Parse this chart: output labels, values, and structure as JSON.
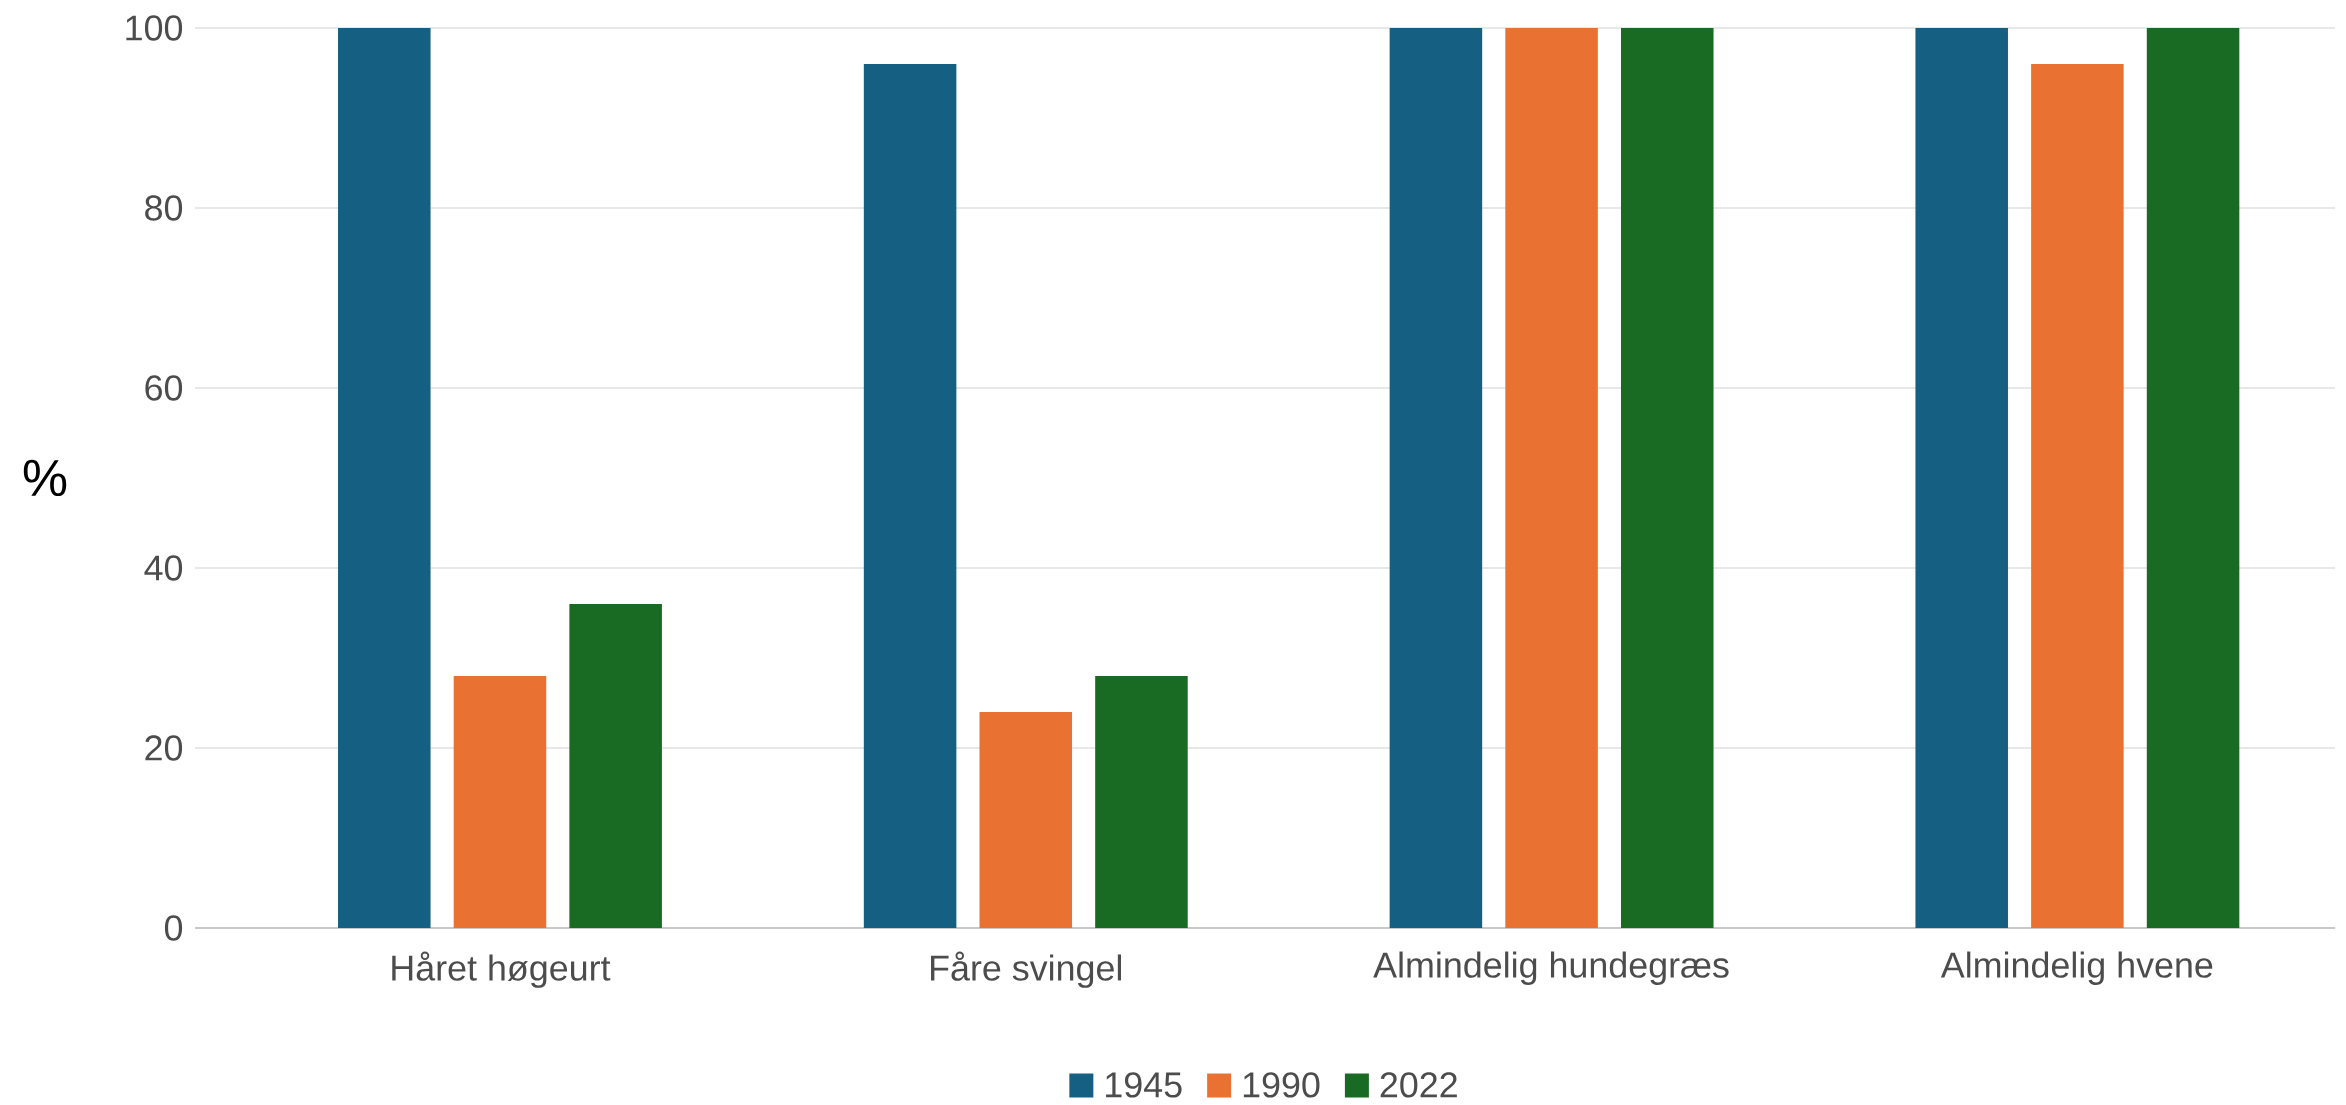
{
  "chart_data": {
    "type": "bar",
    "ylabel": "%",
    "categories": [
      "Håret høgeurt",
      "Fåre svingel",
      "Almindelig hundegræs",
      "Almindelig hvene"
    ],
    "series": [
      {
        "name": "1945",
        "color": "#156082",
        "values": [
          100,
          96,
          100,
          100
        ]
      },
      {
        "name": "1990",
        "color": "#e97132",
        "values": [
          28,
          24,
          100,
          96
        ]
      },
      {
        "name": "2022",
        "color": "#196b24",
        "values": [
          36,
          28,
          100,
          100
        ]
      }
    ],
    "ylim": [
      0,
      100
    ],
    "yticks": [
      0,
      20,
      40,
      60,
      80,
      100
    ],
    "grid": "y",
    "legend": "bottom"
  }
}
